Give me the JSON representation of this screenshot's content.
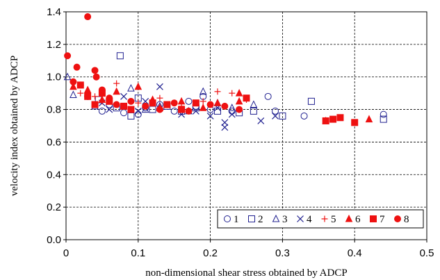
{
  "chart_data": {
    "type": "scatter",
    "title": "",
    "xlabel": "non-dimensional shear stress obtained by ADCP",
    "ylabel": "velocity index obtained by ADCP",
    "xlim": [
      0,
      0.5
    ],
    "ylim": [
      0,
      1.4
    ],
    "xticks": [
      "0",
      "0.1",
      "0.2",
      "0.3",
      "0.4",
      "0.5"
    ],
    "yticks": [
      "0.0",
      "0.2",
      "0.4",
      "0.6",
      "0.8",
      "1.0",
      "1.2",
      "1.4"
    ],
    "grid": "dashed",
    "legend": "bottom-right, single row",
    "series": [
      {
        "name": "1",
        "marker": "circle-open",
        "color": "#1f1f8f",
        "points": [
          [
            0.03,
            0.88
          ],
          [
            0.05,
            0.79
          ],
          [
            0.06,
            0.83
          ],
          [
            0.08,
            0.78
          ],
          [
            0.1,
            0.77
          ],
          [
            0.11,
            0.81
          ],
          [
            0.13,
            0.83
          ],
          [
            0.15,
            0.79
          ],
          [
            0.17,
            0.85
          ],
          [
            0.18,
            0.82
          ],
          [
            0.19,
            0.88
          ],
          [
            0.2,
            0.8
          ],
          [
            0.23,
            0.79
          ],
          [
            0.28,
            0.88
          ],
          [
            0.29,
            0.79
          ],
          [
            0.33,
            0.76
          ],
          [
            0.44,
            0.77
          ]
        ]
      },
      {
        "name": "2",
        "marker": "square-open",
        "color": "#1f1f8f",
        "points": [
          [
            0.045,
            0.86
          ],
          [
            0.07,
            0.81
          ],
          [
            0.075,
            1.13
          ],
          [
            0.09,
            0.76
          ],
          [
            0.1,
            0.87
          ],
          [
            0.12,
            0.8
          ],
          [
            0.14,
            0.82
          ],
          [
            0.16,
            0.79
          ],
          [
            0.18,
            0.81
          ],
          [
            0.21,
            0.79
          ],
          [
            0.24,
            0.78
          ],
          [
            0.26,
            0.79
          ],
          [
            0.3,
            0.76
          ],
          [
            0.34,
            0.85
          ],
          [
            0.44,
            0.74
          ]
        ]
      },
      {
        "name": "3",
        "marker": "triangle-open",
        "color": "#1f1f8f",
        "points": [
          [
            0.002,
            1.0
          ],
          [
            0.01,
            0.89
          ],
          [
            0.04,
            0.82
          ],
          [
            0.06,
            0.85
          ],
          [
            0.09,
            0.93
          ],
          [
            0.11,
            0.8
          ],
          [
            0.13,
            0.82
          ],
          [
            0.17,
            0.79
          ],
          [
            0.19,
            0.91
          ],
          [
            0.21,
            0.84
          ],
          [
            0.23,
            0.81
          ],
          [
            0.26,
            0.83
          ]
        ]
      },
      {
        "name": "4",
        "marker": "x",
        "color": "#1f1f8f",
        "points": [
          [
            0.05,
            0.84
          ],
          [
            0.06,
            0.8
          ],
          [
            0.08,
            0.88
          ],
          [
            0.1,
            0.79
          ],
          [
            0.11,
            0.85
          ],
          [
            0.13,
            0.94
          ],
          [
            0.16,
            0.77
          ],
          [
            0.18,
            0.79
          ],
          [
            0.2,
            0.76
          ],
          [
            0.21,
            0.81
          ],
          [
            0.22,
            0.69
          ],
          [
            0.22,
            0.72
          ],
          [
            0.23,
            0.77
          ],
          [
            0.27,
            0.73
          ],
          [
            0.29,
            0.76
          ]
        ]
      },
      {
        "name": "5",
        "marker": "plus",
        "color": "#ee1111",
        "points": [
          [
            0.02,
            0.9
          ],
          [
            0.04,
            0.88
          ],
          [
            0.05,
            0.85
          ],
          [
            0.07,
            0.96
          ],
          [
            0.1,
            0.84
          ],
          [
            0.11,
            0.82
          ],
          [
            0.13,
            0.87
          ],
          [
            0.16,
            0.82
          ],
          [
            0.19,
            0.85
          ],
          [
            0.21,
            0.91
          ],
          [
            0.23,
            0.9
          ],
          [
            0.25,
            0.86
          ]
        ]
      },
      {
        "name": "6",
        "marker": "triangle-filled",
        "color": "#ee1111",
        "points": [
          [
            0.01,
            0.94
          ],
          [
            0.03,
            0.92
          ],
          [
            0.05,
            0.86
          ],
          [
            0.07,
            0.91
          ],
          [
            0.1,
            0.94
          ],
          [
            0.12,
            0.86
          ],
          [
            0.13,
            0.81
          ],
          [
            0.16,
            0.85
          ],
          [
            0.19,
            0.81
          ],
          [
            0.21,
            0.84
          ],
          [
            0.24,
            0.9
          ],
          [
            0.24,
            0.85
          ],
          [
            0.36,
            0.73
          ],
          [
            0.42,
            0.74
          ]
        ]
      },
      {
        "name": "7",
        "marker": "square-filled",
        "color": "#ee1111",
        "points": [
          [
            0.02,
            0.95
          ],
          [
            0.03,
            0.88
          ],
          [
            0.04,
            0.83
          ],
          [
            0.05,
            0.9
          ],
          [
            0.06,
            0.85
          ],
          [
            0.08,
            0.82
          ],
          [
            0.09,
            0.8
          ],
          [
            0.12,
            0.84
          ],
          [
            0.14,
            0.83
          ],
          [
            0.16,
            0.8
          ],
          [
            0.18,
            0.84
          ],
          [
            0.25,
            0.87
          ],
          [
            0.36,
            0.73
          ],
          [
            0.37,
            0.74
          ],
          [
            0.38,
            0.75
          ],
          [
            0.4,
            0.72
          ]
        ]
      },
      {
        "name": "8",
        "marker": "circle-filled",
        "color": "#ee1111",
        "points": [
          [
            0.002,
            1.13
          ],
          [
            0.01,
            0.97
          ],
          [
            0.015,
            1.06
          ],
          [
            0.02,
            0.95
          ],
          [
            0.03,
            1.37
          ],
          [
            0.03,
            0.88
          ],
          [
            0.04,
            1.04
          ],
          [
            0.042,
            1.0
          ],
          [
            0.05,
            0.92
          ],
          [
            0.06,
            0.87
          ],
          [
            0.07,
            0.83
          ],
          [
            0.09,
            0.85
          ],
          [
            0.11,
            0.82
          ],
          [
            0.13,
            0.8
          ],
          [
            0.15,
            0.84
          ],
          [
            0.17,
            0.79
          ],
          [
            0.2,
            0.83
          ],
          [
            0.22,
            0.82
          ],
          [
            0.24,
            0.8
          ]
        ]
      }
    ]
  }
}
